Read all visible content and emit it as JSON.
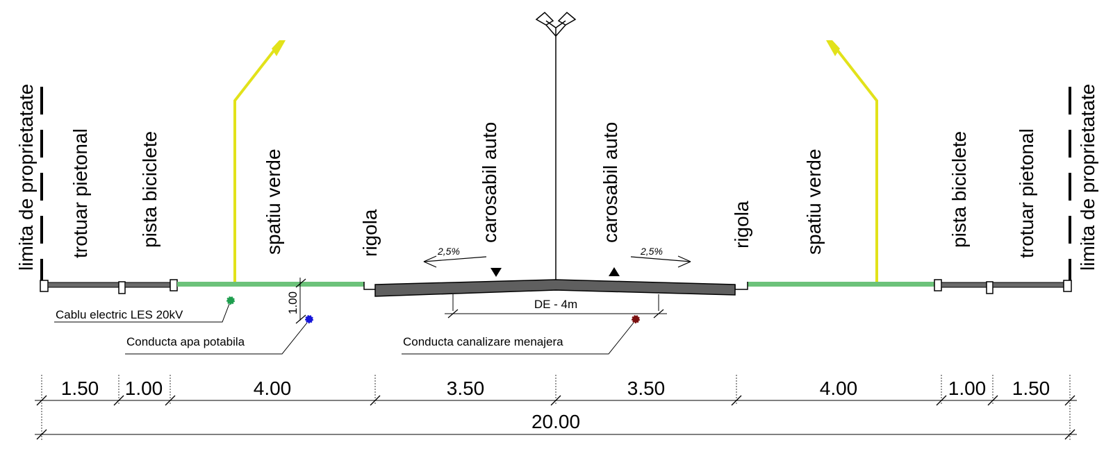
{
  "zones_left": {
    "limit": "limita de proprietatate",
    "sidewalk": "trotuar pietonal",
    "bike": "pista biciclete",
    "green": "spatiu verde",
    "gutter": "rigola",
    "road": "carosabil auto"
  },
  "zones_right": {
    "road": "carosabil auto",
    "gutter": "rigola",
    "green": "spatiu verde",
    "bike": "pista biciclete",
    "sidewalk": "trotuar pietonal",
    "limit": "limita de proprietatate"
  },
  "slopes": {
    "left": "2,5%",
    "right": "2,5%"
  },
  "de_label": "DE - 4m",
  "utilities": {
    "electric": "Cablu electric LES 20kV",
    "water": "Conducta apa potabila",
    "sewer": "Conducta canalizare menajera",
    "water_depth": "1.00"
  },
  "dimensions": {
    "segments": [
      "1.50",
      "1.00",
      "4.00",
      "3.50",
      "3.50",
      "4.00",
      "1.00",
      "1.50"
    ],
    "total": "20.00"
  },
  "colors": {
    "green_strip": "#6cc27a",
    "lamp": "#e2e21a",
    "pavement": "#5f5f5f",
    "electric": "#1e9e4e",
    "water": "#1515d8",
    "sewer": "#7a1010"
  }
}
